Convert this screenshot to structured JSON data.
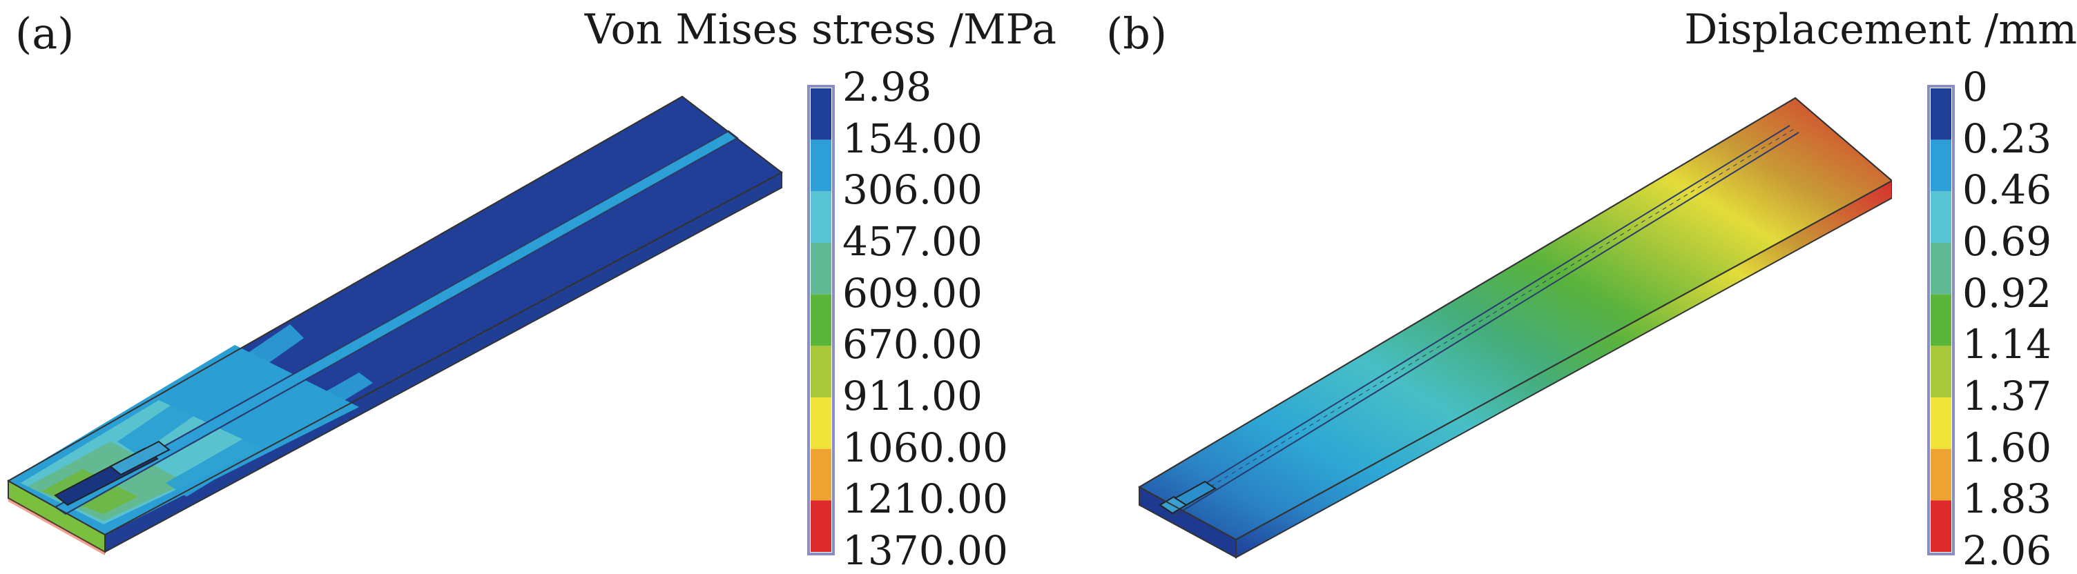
{
  "panels": [
    {
      "label": "(a)",
      "legend_title": "Von Mises stress /MPa",
      "ticks": [
        "2.98",
        "154.00",
        "306.00",
        "457.00",
        "609.00",
        "670.00",
        "911.00",
        "1060.00",
        "1210.00",
        "1370.00"
      ],
      "band_colors": [
        "#1f3f99",
        "#2c9fd6",
        "#57c3d3",
        "#61b996",
        "#5bb53a",
        "#a8c83a",
        "#f0e33a",
        "#eda431",
        "#dd2b2b"
      ]
    },
    {
      "label": "(b)",
      "legend_title": "Displacement /mm",
      "ticks": [
        "0",
        "0.23",
        "0.46",
        "0.69",
        "0.92",
        "1.14",
        "1.37",
        "1.60",
        "1.83",
        "2.06"
      ],
      "band_colors": [
        "#1f3f99",
        "#2c9fd6",
        "#57c3d3",
        "#61b996",
        "#5bb53a",
        "#a8c83a",
        "#f0e33a",
        "#eda431",
        "#dd2b2b"
      ]
    }
  ]
}
